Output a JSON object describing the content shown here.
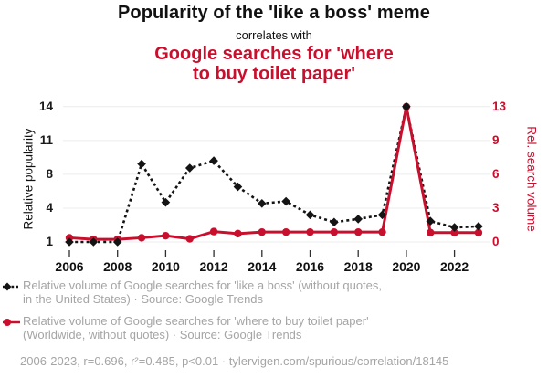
{
  "colors": {
    "accent_red": "#c8102e",
    "series_black": "#141414",
    "grid": "#ececec",
    "muted_text": "#a5a5a5",
    "tick_mark": "#2f2f2f"
  },
  "header": {
    "title": "Popularity of the 'like a boss' meme",
    "connector": "correlates with",
    "subtitle": "Google searches for 'where\nto buy toilet paper'"
  },
  "chart_data": {
    "type": "line",
    "title": "Popularity of the 'like a boss' meme correlates with Google searches for 'where to buy toilet paper'",
    "grid": true,
    "x": [
      2006,
      2007,
      2008,
      2009,
      2010,
      2011,
      2012,
      2013,
      2014,
      2015,
      2016,
      2017,
      2018,
      2019,
      2020,
      2021,
      2022,
      2023
    ],
    "x_tick_labels": [
      "2006",
      "2008",
      "2010",
      "2012",
      "2014",
      "2016",
      "2018",
      "2020",
      "2022"
    ],
    "series": [
      {
        "name": "Google searches for 'like a boss'",
        "axis": "left",
        "color": "#141414",
        "style": "dashed",
        "marker": "diamond",
        "values": [
          1,
          1,
          1,
          8.5,
          4.8,
          8.1,
          8.8,
          6.3,
          4.7,
          4.9,
          3.6,
          2.9,
          3.2,
          3.6,
          14,
          3.0,
          2.4,
          2.5
        ]
      },
      {
        "name": "Google searches for 'where to buy toilet paper'",
        "axis": "right",
        "color": "#c8102e",
        "style": "solid",
        "marker": "circle",
        "values": [
          0.4,
          0.25,
          0.25,
          0.4,
          0.6,
          0.3,
          1.0,
          0.8,
          0.95,
          0.95,
          0.95,
          0.95,
          0.95,
          0.95,
          13,
          0.9,
          0.9,
          0.9
        ]
      }
    ],
    "left_axis": {
      "label": "Relative popularity",
      "tick_labels": [
        "14",
        "11",
        "8",
        "4",
        "1"
      ],
      "range": [
        1,
        14
      ]
    },
    "right_axis": {
      "label": "Rel. search volume",
      "tick_labels": [
        "13",
        "9",
        "6",
        "3",
        "0"
      ],
      "range": [
        0,
        13
      ]
    }
  },
  "legend": {
    "items": [
      {
        "marker": "black-dashed-diamond",
        "text": "Relative volume of Google searches for 'like a boss' (without quotes,\nin the United States) · Source: Google Trends"
      },
      {
        "marker": "red-solid-circle",
        "text": "Relative volume of Google searches for 'where to buy toilet paper'\n(Worldwide, without quotes) · Source: Google Trends"
      }
    ]
  },
  "footer": {
    "text": "2006-2023, r=0.696, r²=0.485, p<0.01 · tylervigen.com/spurious/correlation/18145"
  }
}
